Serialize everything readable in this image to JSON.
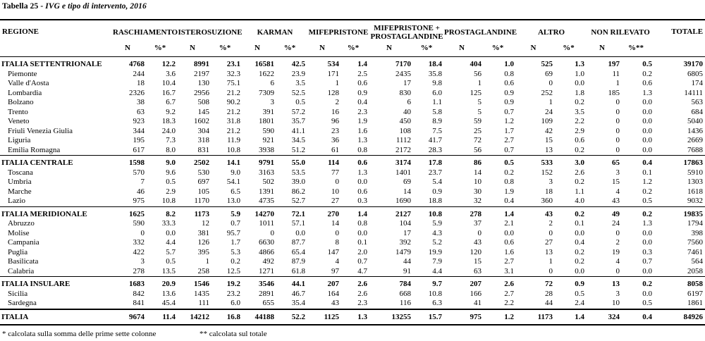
{
  "title": {
    "prefix": "Tabella 25 -",
    "italic": "IVG e tipo di intervento, 2016"
  },
  "table": {
    "region_header": "REGIONE",
    "totale_header": "TOTALE",
    "groups": [
      {
        "label": "RASCHIAMENTO",
        "sub": [
          "N",
          "%*"
        ]
      },
      {
        "label": "ISTEROSUZIONE",
        "sub": [
          "N",
          "%*"
        ]
      },
      {
        "label": "KARMAN",
        "sub": [
          "N",
          "%*"
        ]
      },
      {
        "label": "MIFEPRISTONE",
        "sub": [
          "N",
          "%*"
        ]
      },
      {
        "label": "MIFEPRISTONE + PROSTAGLANDINE",
        "sub": [
          "N",
          "%*"
        ]
      },
      {
        "label": "PROSTAGLANDINE",
        "sub": [
          "N",
          "%*"
        ]
      },
      {
        "label": "ALTRO",
        "sub": [
          "N",
          "%*"
        ]
      },
      {
        "label": "NON RILEVATO",
        "sub": [
          "N",
          "%**"
        ]
      }
    ],
    "rows": [
      {
        "region": "ITALIA SETTENTRIONALE",
        "type": "section",
        "cells": [
          "4768",
          "12.2",
          "8991",
          "23.1",
          "16581",
          "42.5",
          "534",
          "1.4",
          "7170",
          "18.4",
          "404",
          "1.0",
          "525",
          "1.3",
          "197",
          "0.5",
          "39170"
        ]
      },
      {
        "region": "Piemonte",
        "type": "region",
        "cells": [
          "244",
          "3.6",
          "2197",
          "32.3",
          "1622",
          "23.9",
          "171",
          "2.5",
          "2435",
          "35.8",
          "56",
          "0.8",
          "69",
          "1.0",
          "11",
          "0.2",
          "6805"
        ]
      },
      {
        "region": "Valle d'Aosta",
        "type": "region",
        "cells": [
          "18",
          "10.4",
          "130",
          "75.1",
          "6",
          "3.5",
          "1",
          "0.6",
          "17",
          "9.8",
          "1",
          "0.6",
          "0",
          "0.0",
          "1",
          "0.6",
          "174"
        ]
      },
      {
        "region": "Lombardia",
        "type": "region",
        "cells": [
          "2326",
          "16.7",
          "2956",
          "21.2",
          "7309",
          "52.5",
          "128",
          "0.9",
          "830",
          "6.0",
          "125",
          "0.9",
          "252",
          "1.8",
          "185",
          "1.3",
          "14111"
        ]
      },
      {
        "region": "Bolzano",
        "type": "region",
        "cells": [
          "38",
          "6.7",
          "508",
          "90.2",
          "3",
          "0.5",
          "2",
          "0.4",
          "6",
          "1.1",
          "5",
          "0.9",
          "1",
          "0.2",
          "0",
          "0.0",
          "563"
        ]
      },
      {
        "region": "Trento",
        "type": "region",
        "cells": [
          "63",
          "9.2",
          "145",
          "21.2",
          "391",
          "57.2",
          "16",
          "2.3",
          "40",
          "5.8",
          "5",
          "0.7",
          "24",
          "3.5",
          "0",
          "0.0",
          "684"
        ]
      },
      {
        "region": "Veneto",
        "type": "region",
        "cells": [
          "923",
          "18.3",
          "1602",
          "31.8",
          "1801",
          "35.7",
          "96",
          "1.9",
          "450",
          "8.9",
          "59",
          "1.2",
          "109",
          "2.2",
          "0",
          "0.0",
          "5040"
        ]
      },
      {
        "region": "Friuli Venezia Giulia",
        "type": "region",
        "cells": [
          "344",
          "24.0",
          "304",
          "21.2",
          "590",
          "41.1",
          "23",
          "1.6",
          "108",
          "7.5",
          "25",
          "1.7",
          "42",
          "2.9",
          "0",
          "0.0",
          "1436"
        ]
      },
      {
        "region": "Liguria",
        "type": "region",
        "cells": [
          "195",
          "7.3",
          "318",
          "11.9",
          "921",
          "34.5",
          "36",
          "1.3",
          "1112",
          "41.7",
          "72",
          "2.7",
          "15",
          "0.6",
          "0",
          "0.0",
          "2669"
        ]
      },
      {
        "region": "Emilia Romagna",
        "type": "region",
        "cells": [
          "617",
          "8.0",
          "831",
          "10.8",
          "3938",
          "51.2",
          "61",
          "0.8",
          "2172",
          "28.3",
          "56",
          "0.7",
          "13",
          "0.2",
          "0",
          "0.0",
          "7688"
        ]
      },
      {
        "region": "ITALIA CENTRALE",
        "type": "section",
        "cells": [
          "1598",
          "9.0",
          "2502",
          "14.1",
          "9791",
          "55.0",
          "114",
          "0.6",
          "3174",
          "17.8",
          "86",
          "0.5",
          "533",
          "3.0",
          "65",
          "0.4",
          "17863"
        ]
      },
      {
        "region": "Toscana",
        "type": "region",
        "cells": [
          "570",
          "9.6",
          "530",
          "9.0",
          "3163",
          "53.5",
          "77",
          "1.3",
          "1401",
          "23.7",
          "14",
          "0.2",
          "152",
          "2.6",
          "3",
          "0.1",
          "5910"
        ]
      },
      {
        "region": "Umbria",
        "type": "region",
        "cells": [
          "7",
          "0.5",
          "697",
          "54.1",
          "502",
          "39.0",
          "0",
          "0.0",
          "69",
          "5.4",
          "10",
          "0.8",
          "3",
          "0.2",
          "15",
          "1.2",
          "1303"
        ]
      },
      {
        "region": "Marche",
        "type": "region",
        "cells": [
          "46",
          "2.9",
          "105",
          "6.5",
          "1391",
          "86.2",
          "10",
          "0.6",
          "14",
          "0.9",
          "30",
          "1.9",
          "18",
          "1.1",
          "4",
          "0.2",
          "1618"
        ]
      },
      {
        "region": "Lazio",
        "type": "region",
        "cells": [
          "975",
          "10.8",
          "1170",
          "13.0",
          "4735",
          "52.7",
          "27",
          "0.3",
          "1690",
          "18.8",
          "32",
          "0.4",
          "360",
          "4.0",
          "43",
          "0.5",
          "9032"
        ]
      },
      {
        "region": "ITALIA MERIDIONALE",
        "type": "section",
        "cells": [
          "1625",
          "8.2",
          "1173",
          "5.9",
          "14270",
          "72.1",
          "270",
          "1.4",
          "2127",
          "10.8",
          "278",
          "1.4",
          "43",
          "0.2",
          "49",
          "0.2",
          "19835"
        ]
      },
      {
        "region": "Abruzzo",
        "type": "region",
        "cells": [
          "590",
          "33.3",
          "12",
          "0.7",
          "1011",
          "57.1",
          "14",
          "0.8",
          "104",
          "5.9",
          "37",
          "2.1",
          "2",
          "0.1",
          "24",
          "1.3",
          "1794"
        ]
      },
      {
        "region": "Molise",
        "type": "region",
        "cells": [
          "0",
          "0.0",
          "381",
          "95.7",
          "0",
          "0.0",
          "0",
          "0.0",
          "17",
          "4.3",
          "0",
          "0.0",
          "0",
          "0.0",
          "0",
          "0.0",
          "398"
        ]
      },
      {
        "region": "Campania",
        "type": "region",
        "cells": [
          "332",
          "4.4",
          "126",
          "1.7",
          "6630",
          "87.7",
          "8",
          "0.1",
          "392",
          "5.2",
          "43",
          "0.6",
          "27",
          "0.4",
          "2",
          "0.0",
          "7560"
        ]
      },
      {
        "region": "Puglia",
        "type": "region",
        "cells": [
          "422",
          "5.7",
          "395",
          "5.3",
          "4866",
          "65.4",
          "147",
          "2.0",
          "1479",
          "19.9",
          "120",
          "1.6",
          "13",
          "0.2",
          "19",
          "0.3",
          "7461"
        ]
      },
      {
        "region": "Basilicata",
        "type": "region",
        "cells": [
          "3",
          "0.5",
          "1",
          "0.2",
          "492",
          "87.9",
          "4",
          "0.7",
          "44",
          "7.9",
          "15",
          "2.7",
          "1",
          "0.2",
          "4",
          "0.7",
          "564"
        ]
      },
      {
        "region": "Calabria",
        "type": "region",
        "cells": [
          "278",
          "13.5",
          "258",
          "12.5",
          "1271",
          "61.8",
          "97",
          "4.7",
          "91",
          "4.4",
          "63",
          "3.1",
          "0",
          "0.0",
          "0",
          "0.0",
          "2058"
        ]
      },
      {
        "region": "ITALIA INSULARE",
        "type": "section",
        "cells": [
          "1683",
          "20.9",
          "1546",
          "19.2",
          "3546",
          "44.1",
          "207",
          "2.6",
          "784",
          "9.7",
          "207",
          "2.6",
          "72",
          "0.9",
          "13",
          "0.2",
          "8058"
        ]
      },
      {
        "region": "Sicilia",
        "type": "region",
        "cells": [
          "842",
          "13.6",
          "1435",
          "23.2",
          "2891",
          "46.7",
          "164",
          "2.6",
          "668",
          "10.8",
          "166",
          "2.7",
          "28",
          "0.5",
          "3",
          "0.0",
          "6197"
        ]
      },
      {
        "region": "Sardegna",
        "type": "region",
        "cells": [
          "841",
          "45.4",
          "111",
          "6.0",
          "655",
          "35.4",
          "43",
          "2.3",
          "116",
          "6.3",
          "41",
          "2.2",
          "44",
          "2.4",
          "10",
          "0.5",
          "1861"
        ]
      },
      {
        "region": "ITALIA",
        "type": "total",
        "cells": [
          "9674",
          "11.4",
          "14212",
          "16.8",
          "44188",
          "52.2",
          "1125",
          "1.3",
          "13255",
          "15.7",
          "975",
          "1.2",
          "1173",
          "1.4",
          "324",
          "0.4",
          "84926"
        ]
      }
    ]
  },
  "footnotes": {
    "left": "* calcolata sulla somma delle prime sette colonne",
    "right": "** calcolata sul totale"
  }
}
